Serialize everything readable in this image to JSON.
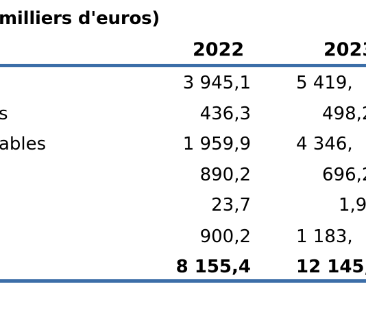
{
  "title": "milliers d'euros)",
  "years": [
    "2022",
    "2023"
  ],
  "rows": [
    {
      "label": "",
      "v2022": "3 945,1",
      "v2023": "5 419,"
    },
    {
      "label": "s",
      "v2022": "436,3",
      "v2023": "498,2"
    },
    {
      "label": "ables",
      "v2022": "1 959,9",
      "v2023": "4 346,"
    },
    {
      "label": "",
      "v2022": "890,2",
      "v2023": "696,2"
    },
    {
      "label": "",
      "v2022": "23,7",
      "v2023": "1,9"
    },
    {
      "label": "",
      "v2022": "900,2",
      "v2023": "1 183,"
    },
    {
      "label": "",
      "v2022": "8 155,4",
      "v2023": "12 145,"
    }
  ],
  "colors": {
    "rule": "#3c6ea8"
  }
}
